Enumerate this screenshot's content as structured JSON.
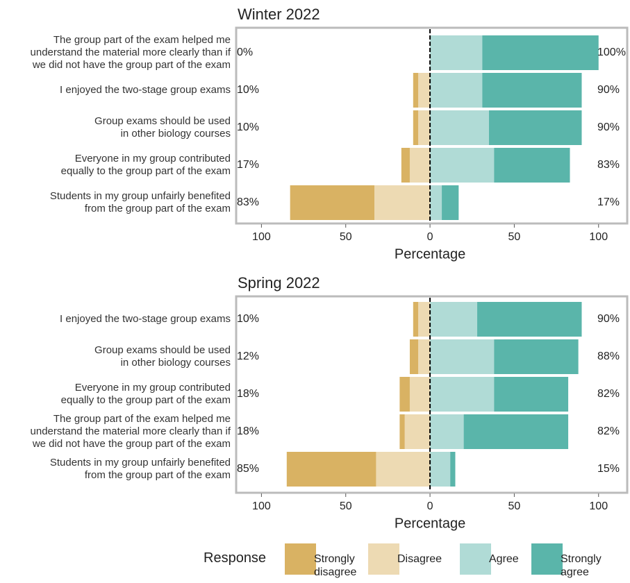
{
  "chart_data": [
    {
      "type": "bar",
      "title": "Winter 2022",
      "xlabel": "Percentage",
      "categories": [
        "The group part of the exam helped me\nunderstand the material more clearly than if\nwe did not have the group part of the exam",
        "I enjoyed the two-stage group exams",
        "Group exams should be used\nin other biology courses",
        "Everyone in my group contributed\nequally to the group part of the exam",
        "Students in my group unfairly benefited\nfrom the group part of the exam"
      ],
      "series": [
        {
          "name": "Strongly\ndisagree",
          "color": "#d9b263",
          "side": "left",
          "values": [
            0,
            3,
            3,
            5,
            50
          ]
        },
        {
          "name": "Disagree",
          "color": "#eddab3",
          "side": "left",
          "values": [
            0,
            7,
            7,
            12,
            33
          ]
        },
        {
          "name": "Agree",
          "color": "#b0dbd6",
          "side": "right",
          "values": [
            31,
            31,
            35,
            38,
            7
          ]
        },
        {
          "name": "Strongly\nagree",
          "color": "#5ab5aa",
          "side": "right",
          "values": [
            69,
            59,
            55,
            45,
            10
          ]
        }
      ],
      "left_totals": {
        "values": [
          0,
          10,
          10,
          17,
          83
        ],
        "value_labels": [
          "0%",
          "10%",
          "10%",
          "17%",
          "83%"
        ]
      },
      "right_totals": {
        "values": [
          100,
          90,
          90,
          83,
          17
        ],
        "value_labels": [
          "100%",
          "90%",
          "90%",
          "83%",
          "17%"
        ]
      },
      "xlim": [
        -115,
        117
      ],
      "xticks": [
        {
          "value": -100,
          "label": "100"
        },
        {
          "value": -50,
          "label": "50"
        },
        0,
        50,
        100
      ],
      "legend_title": "Response"
    },
    {
      "type": "bar",
      "title": "Spring 2022",
      "xlabel": "Percentage",
      "categories": [
        "I enjoyed the two-stage group exams",
        "Group exams should be used\nin other biology courses",
        "Everyone in my group contributed\nequally to the group part of the exam",
        "The group part of the exam helped me\nunderstand the material more clearly than if\nwe did not have the group part of the exam",
        "Students in my group unfairly benefited\nfrom the group part of the exam"
      ],
      "series": [
        {
          "name": "Strongly\ndisagree",
          "color": "#d9b263",
          "side": "left",
          "values": [
            3,
            5,
            6,
            3,
            53
          ]
        },
        {
          "name": "Disagree",
          "color": "#eddab3",
          "side": "left",
          "values": [
            7,
            7,
            12,
            15,
            32
          ]
        },
        {
          "name": "Agree",
          "color": "#b0dbd6",
          "side": "right",
          "values": [
            28,
            38,
            38,
            20,
            12
          ]
        },
        {
          "name": "Strongly\nagree",
          "color": "#5ab5aa",
          "side": "right",
          "values": [
            62,
            50,
            44,
            62,
            3
          ]
        }
      ],
      "left_totals": {
        "values": [
          10,
          12,
          18,
          18,
          85
        ],
        "value_labels": [
          "10%",
          "12%",
          "18%",
          "18%",
          "85%"
        ]
      },
      "right_totals": {
        "values": [
          90,
          88,
          82,
          82,
          15
        ],
        "value_labels": [
          "90%",
          "88%",
          "82%",
          "82%",
          "15%"
        ]
      },
      "xlim": [
        -115,
        117
      ],
      "xticks": [
        {
          "value": -100,
          "label": "100"
        },
        {
          "value": -50,
          "label": "50"
        },
        0,
        50,
        100
      ]
    }
  ]
}
